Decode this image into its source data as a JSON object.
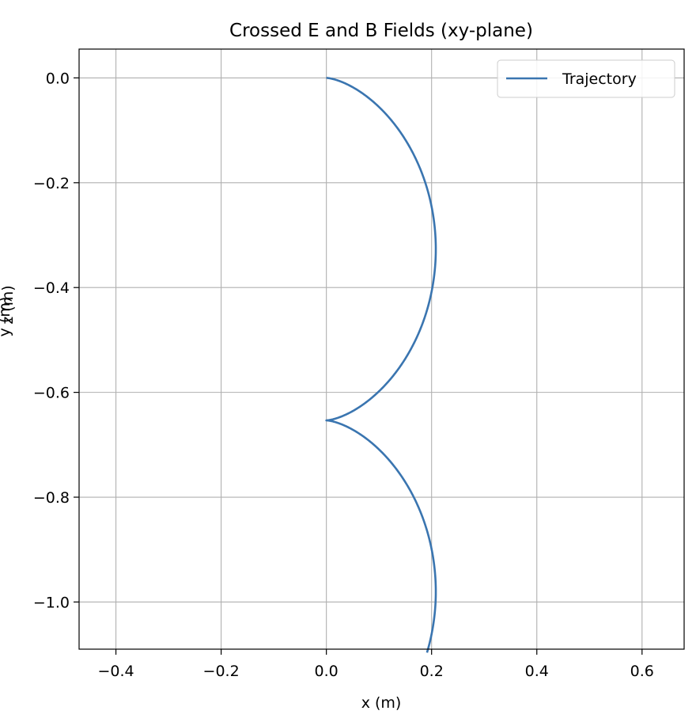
{
  "chart_data": {
    "type": "line",
    "title": "Crossed E and B Fields (xy-plane)",
    "xlabel": "x (m)",
    "ylabel": "y (m)",
    "ylabel_overlap_text": "z (m)",
    "xlim": [
      -0.47,
      0.68
    ],
    "ylim": [
      -1.09,
      0.055
    ],
    "xticks": [
      -0.4,
      -0.2,
      0.0,
      0.2,
      0.4,
      0.6
    ],
    "xtick_labels": [
      "−0.4",
      "−0.2",
      "0.0",
      "0.2",
      "0.4",
      "0.6"
    ],
    "yticks": [
      0.0,
      -0.2,
      -0.4,
      -0.6,
      -0.8,
      -1.0
    ],
    "ytick_labels": [
      "0.0",
      "−0.2",
      "−0.4",
      "−0.6",
      "−0.8",
      "−1.0"
    ],
    "grid": true,
    "legend_position": "top-right",
    "series": [
      {
        "name": "Trajectory",
        "color": "#3a75b0",
        "radius": 0.104,
        "t_max": 10.0
      }
    ]
  }
}
